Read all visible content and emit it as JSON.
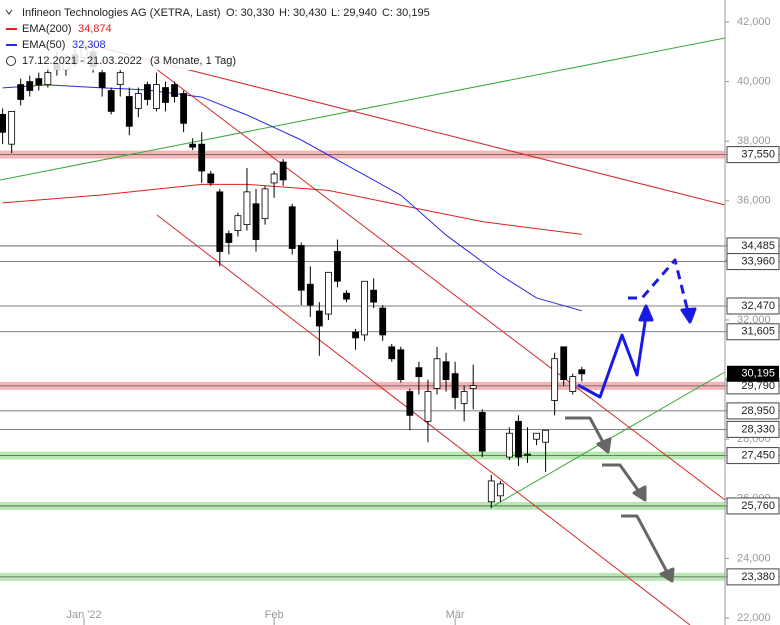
{
  "chart_data": {
    "type": "candlestick",
    "title": "Infineon Technologies AG (XETRA, Last)",
    "ohlc_labels": [
      "O: 30,330",
      "H: 30,430",
      "L: 29,940",
      "C: 30,195"
    ],
    "date_range": "17.12.2021 - 21.03.2022",
    "period": "(3 Monate, 1 Tag)",
    "open": [
      38.9,
      37.9,
      39.9,
      40.0,
      40.1,
      39.9,
      40.6,
      40.4,
      40.9,
      40.8,
      41.0,
      40.3,
      39.7,
      39.9,
      39.5,
      39.1,
      39.9,
      39.1,
      39.8,
      39.9,
      39.6,
      37.9,
      37.9,
      36.9,
      36.3,
      34.9,
      35.0,
      35.2,
      35.9,
      35.4,
      36.6,
      37.3,
      35.8,
      34.5,
      33.2,
      32.3,
      32.2,
      34.3,
      32.9,
      31.6,
      31.5,
      33.0,
      32.4,
      31.1,
      31.0,
      29.6,
      30.4,
      28.6,
      29.7,
      30.6,
      30.2,
      29.2,
      29.7,
      28.9,
      25.9,
      26.1,
      27.4,
      28.6,
      27.5,
      28.0,
      27.9,
      29.3,
      31.1,
      29.6,
      30.33
    ],
    "high": [
      39.1,
      39.0,
      40.1,
      40.2,
      40.3,
      40.5,
      41.0,
      40.9,
      41.1,
      41.4,
      41.3,
      40.4,
      39.8,
      40.4,
      39.8,
      39.8,
      40.0,
      40.3,
      40.0,
      40.0,
      39.7,
      38.1,
      38.3,
      37.0,
      36.4,
      35.0,
      35.6,
      37.1,
      36.4,
      36.5,
      37.0,
      37.4,
      35.9,
      34.6,
      33.8,
      32.6,
      33.6,
      34.7,
      33.0,
      31.7,
      33.3,
      33.4,
      32.5,
      31.2,
      31.1,
      29.7,
      30.6,
      30.0,
      31.1,
      30.9,
      30.6,
      29.8,
      30.5,
      29.0,
      26.8,
      26.6,
      28.4,
      28.8,
      28.4,
      28.2,
      28.3,
      30.9,
      31.1,
      30.2,
      30.43
    ],
    "low": [
      37.9,
      37.6,
      39.2,
      39.5,
      39.7,
      39.8,
      40.2,
      40.2,
      40.5,
      40.6,
      40.3,
      39.5,
      38.9,
      39.5,
      38.2,
      38.8,
      39.2,
      39.0,
      39.0,
      39.3,
      38.3,
      37.7,
      36.6,
      36.5,
      33.8,
      34.2,
      34.8,
      35.0,
      34.3,
      35.2,
      36.1,
      36.5,
      34.2,
      32.5,
      32.1,
      30.8,
      32.0,
      33.1,
      32.6,
      31.0,
      31.3,
      32.4,
      31.3,
      30.6,
      29.9,
      28.3,
      29.5,
      27.9,
      29.5,
      29.6,
      29.0,
      28.6,
      29.0,
      27.4,
      25.7,
      25.9,
      27.3,
      27.1,
      27.2,
      27.8,
      26.9,
      28.8,
      29.8,
      29.5,
      29.94
    ],
    "close": [
      38.3,
      39.0,
      39.4,
      39.7,
      39.9,
      40.3,
      40.4,
      40.8,
      40.6,
      41.2,
      40.5,
      39.8,
      39.0,
      40.3,
      38.5,
      39.6,
      39.4,
      39.9,
      39.3,
      39.5,
      38.6,
      37.8,
      37.0,
      36.6,
      34.3,
      34.6,
      35.5,
      36.3,
      34.7,
      36.4,
      36.9,
      36.7,
      34.4,
      33.0,
      32.5,
      31.8,
      33.6,
      33.3,
      32.7,
      31.4,
      33.3,
      32.6,
      31.5,
      30.7,
      30.0,
      28.8,
      30.1,
      29.6,
      30.7,
      30.0,
      29.4,
      29.6,
      29.8,
      27.6,
      26.6,
      26.5,
      28.2,
      27.4,
      27.5,
      28.2,
      28.3,
      30.7,
      30.0,
      30.1,
      30.195
    ],
    "overlays": [
      {
        "name": "EMA(200)",
        "value_label": "34,874",
        "color": "#e0201c",
        "x": [
          0,
          11,
          22,
          27,
          36,
          44,
          53,
          64
        ],
        "values": [
          35.93,
          36.2,
          36.55,
          36.55,
          36.35,
          35.85,
          35.3,
          34.874
        ]
      },
      {
        "name": "EMA(50)",
        "value_label": "32,308",
        "color": "#2a2ae0",
        "x": [
          0,
          5,
          11,
          16,
          22,
          27,
          33,
          38,
          44,
          49,
          55,
          59,
          64
        ],
        "values": [
          39.79,
          39.89,
          39.79,
          39.72,
          39.48,
          38.88,
          38.04,
          37.2,
          36.19,
          34.85,
          33.51,
          32.74,
          32.308
        ]
      }
    ],
    "levels": [
      {
        "value": 37.55,
        "label": "37,550",
        "zone": "#f4b6b6"
      },
      {
        "value": 34.485,
        "label": "34,485"
      },
      {
        "value": 33.96,
        "label": "33,960"
      },
      {
        "value": 32.47,
        "label": "32,470"
      },
      {
        "value": 31.605,
        "label": "31,605"
      },
      {
        "value": 29.79,
        "label": "29,790",
        "zone": "#f4b6b6"
      },
      {
        "value": 28.95,
        "label": "28,950"
      },
      {
        "value": 28.33,
        "label": "28,330"
      },
      {
        "value": 27.45,
        "label": "27,450",
        "zone": "#b9e8b4"
      },
      {
        "value": 25.76,
        "label": "25,760",
        "zone": "#b9e8b4"
      },
      {
        "value": 23.38,
        "label": "23,380",
        "zone": "#b9e8b4"
      }
    ],
    "last_price": {
      "value": 30.195,
      "label": "30,195"
    },
    "ylim": [
      22,
      42
    ],
    "yticks": [
      {
        "value": 22,
        "label": "22,000"
      },
      {
        "value": 24,
        "label": "24,000"
      },
      {
        "value": 26,
        "label": "26,000"
      },
      {
        "value": 28,
        "label": "28,000"
      },
      {
        "value": 30,
        "label": "30,000"
      },
      {
        "value": 32,
        "label": "32,000"
      },
      {
        "value": 34,
        "label": "34,000"
      },
      {
        "value": 36,
        "label": "36,000"
      },
      {
        "value": 38,
        "label": "38,000"
      },
      {
        "value": 40,
        "label": "40,000"
      },
      {
        "value": 42,
        "label": "42,000"
      }
    ],
    "xticks": [
      {
        "value": 9,
        "label": "Jan '22"
      },
      {
        "value": 30,
        "label": "Feb"
      },
      {
        "value": 50,
        "label": "Mär"
      }
    ]
  }
}
